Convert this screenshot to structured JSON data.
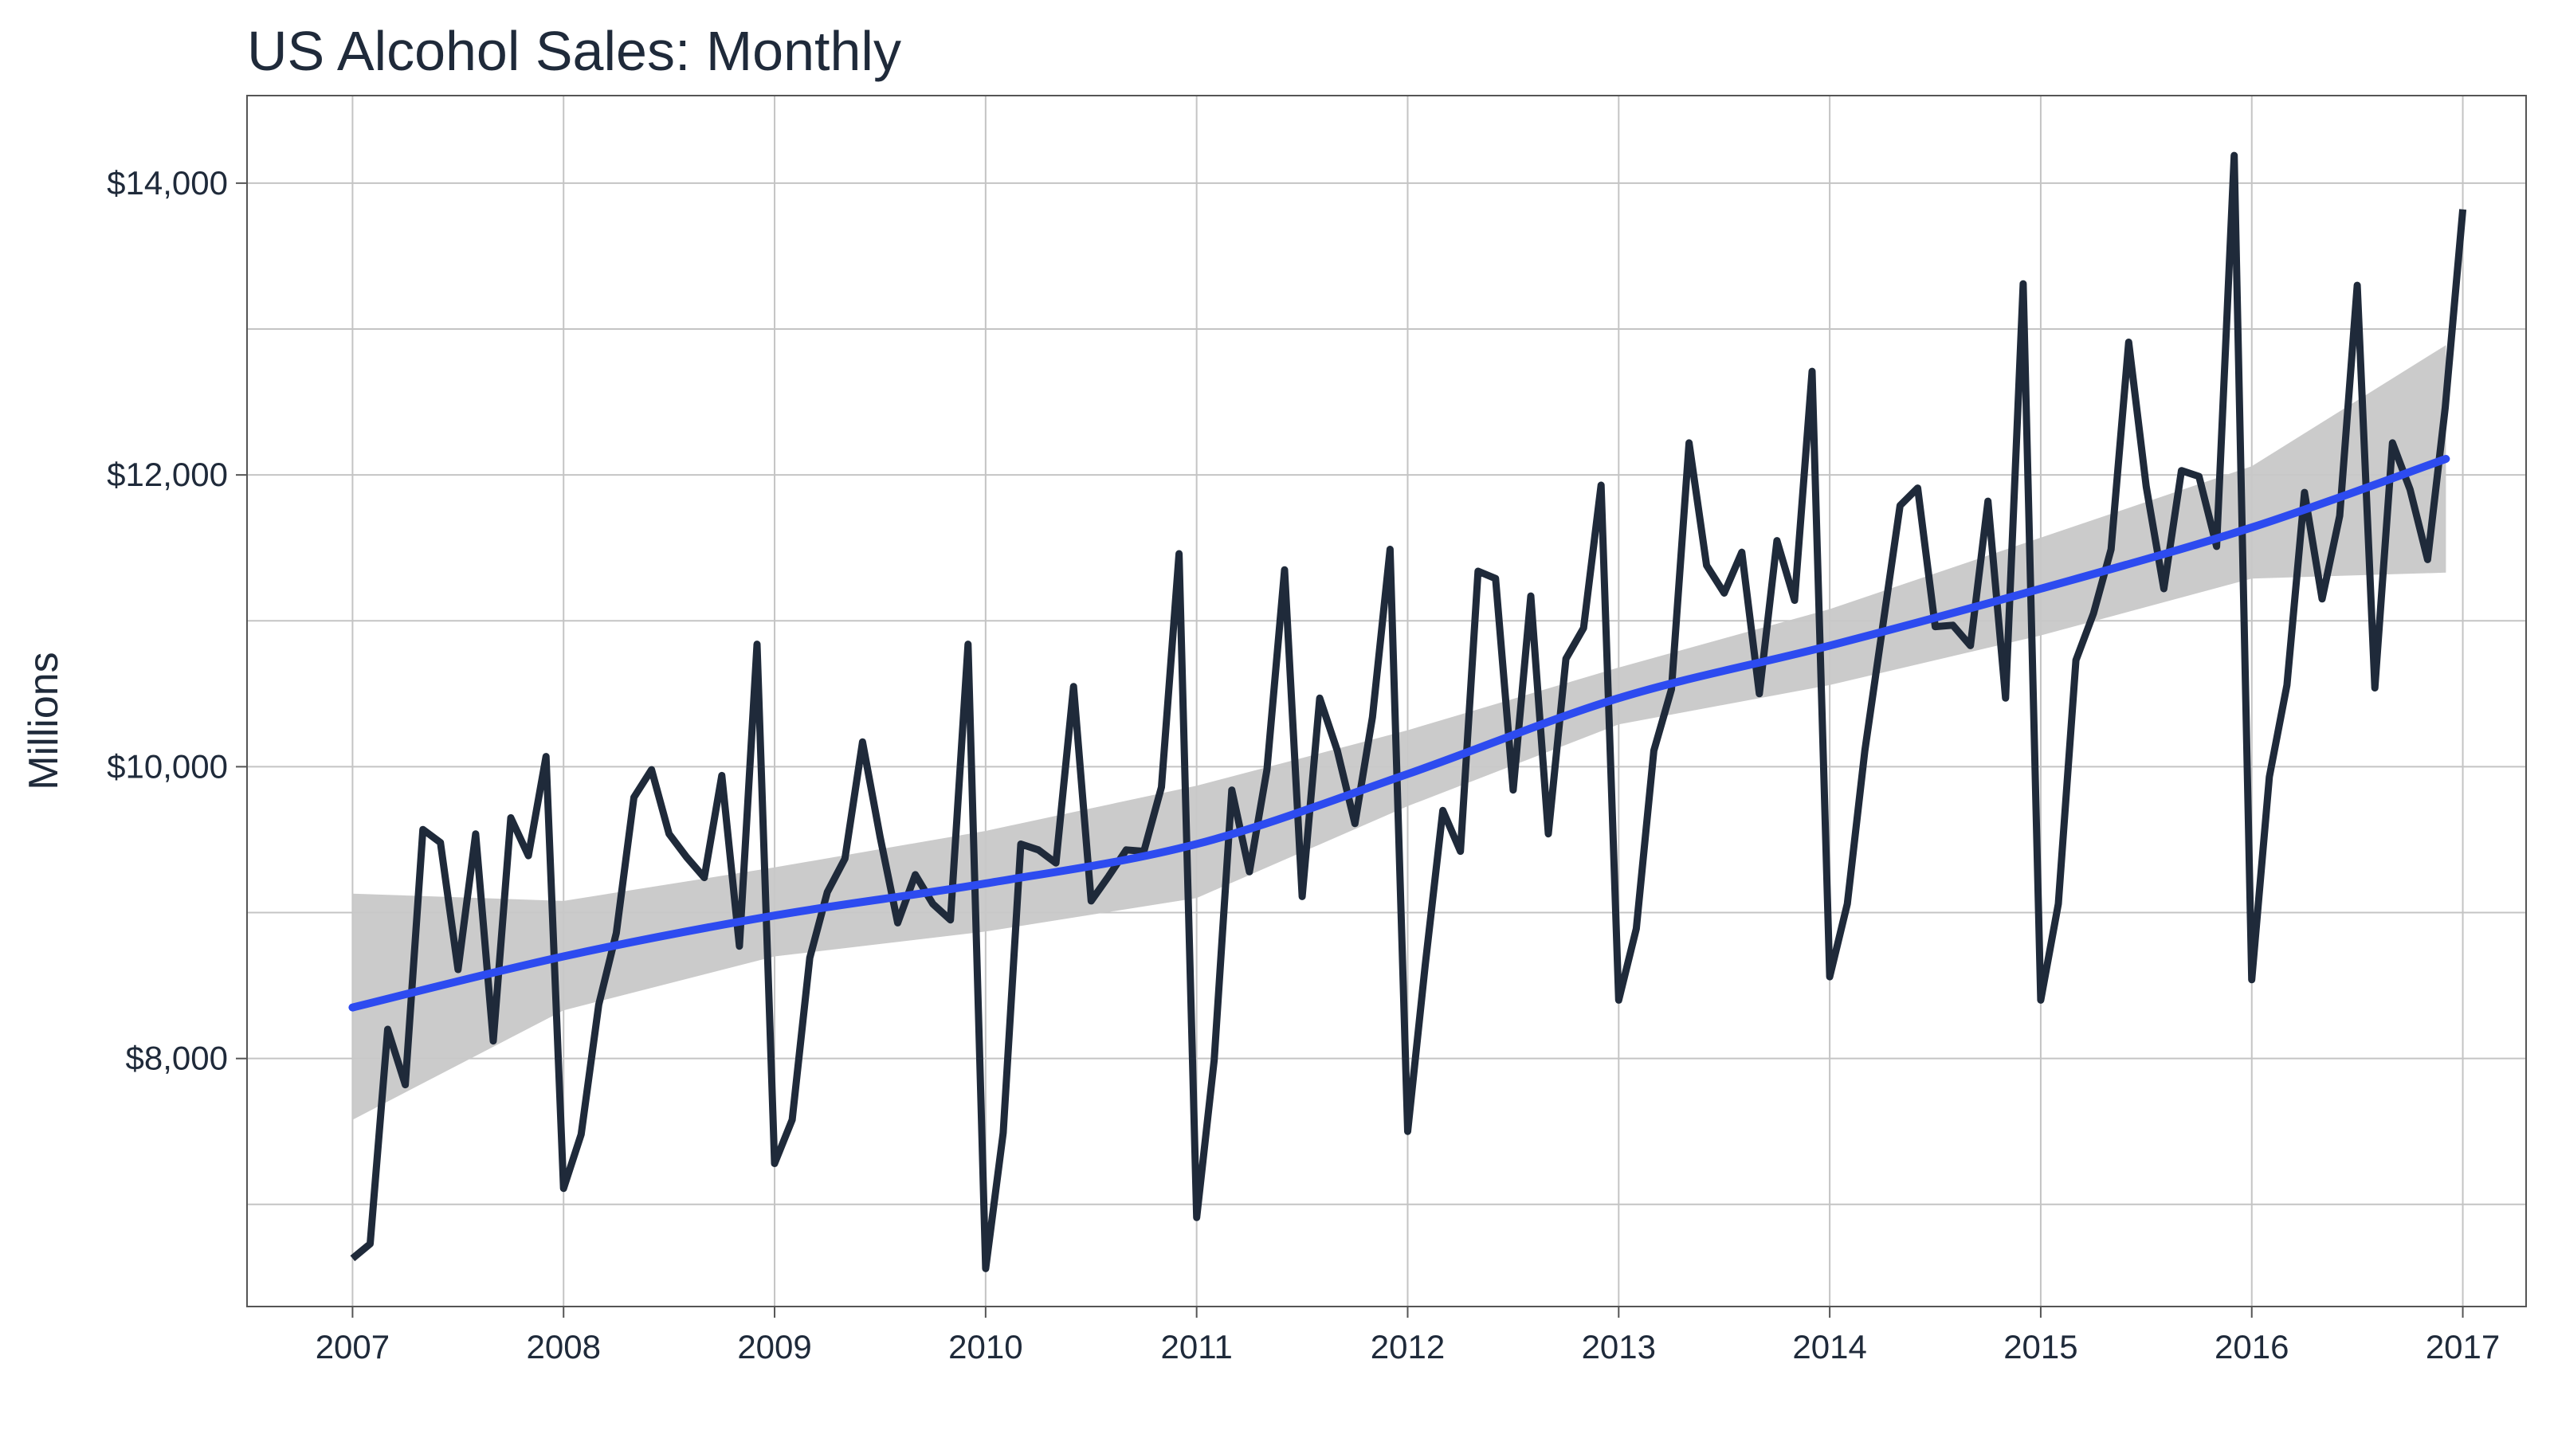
{
  "chart_data": {
    "type": "line",
    "title": "US Alcohol Sales: Monthly",
    "xlabel": "",
    "ylabel": "Millions",
    "x_ticks": [
      "2007",
      "2008",
      "2009",
      "2010",
      "2011",
      "2012",
      "2013",
      "2014",
      "2015",
      "2016",
      "2017"
    ],
    "y_ticks": [
      {
        "value": 8000,
        "label": "$8,000"
      },
      {
        "value": 10000,
        "label": "$10,000"
      },
      {
        "value": 12000,
        "label": "$12,000"
      },
      {
        "value": 14000,
        "label": "$14,000"
      }
    ],
    "xlim": [
      2006.5,
      2017.3
    ],
    "ylim": [
      6300,
      14600
    ],
    "grid": true,
    "start_year": 2007,
    "series": [
      {
        "values": [
          6630,
          6730,
          8200,
          7820,
          9570,
          9480,
          8610,
          9540,
          8120,
          9650,
          9390,
          10070,
          7110,
          7480,
          8370,
          8860,
          9790,
          9980,
          9540,
          9380,
          9240,
          9940,
          8770,
          10840,
          7280,
          7580,
          8690,
          9140,
          9370,
          10170,
          9520,
          8930,
          9260,
          9060,
          8950,
          10840,
          6560,
          7490,
          9470,
          9430,
          9340,
          10550,
          9080,
          9250,
          9430,
          9420,
          9860,
          11460,
          6910,
          7990,
          9840,
          9280,
          9980,
          11350,
          9110,
          10470,
          10110,
          9610,
          10340,
          11490,
          7500,
          8640,
          9700,
          9420,
          11340,
          11290,
          9840,
          11170,
          9540,
          10740,
          10950,
          11930,
          8400,
          8890,
          10110,
          10530,
          12220,
          11380,
          11190,
          11470,
          10500,
          11550,
          11140,
          12710,
          8560,
          9060,
          10110,
          10950,
          11790,
          11910,
          10960,
          10970,
          10830,
          11820,
          10470,
          13310,
          8400,
          9060,
          10730,
          11050,
          11490,
          12910,
          11920,
          11220,
          12030,
          11990,
          11510,
          14190,
          8540,
          9930,
          10560,
          11880,
          11150,
          11720,
          13300,
          10540,
          12220,
          11900,
          11420,
          12460,
          13820
        ]
      }
    ],
    "trend": {
      "x": [
        2007,
        2008,
        2009,
        2010,
        2011,
        2012,
        2013,
        2014,
        2015,
        2016,
        2016.92
      ],
      "y": [
        8350,
        8700,
        8980,
        9200,
        9470,
        9950,
        10470,
        10830,
        11220,
        11640,
        12110
      ],
      "ci_low": [
        7580,
        8330,
        8700,
        8870,
        9100,
        9730,
        10290,
        10560,
        10900,
        11290,
        11330
      ],
      "ci_high": [
        9130,
        9080,
        9310,
        9560,
        9870,
        10250,
        10680,
        11080,
        11570,
        12060,
        12890
      ]
    },
    "colors": {
      "line": "#1f2a3a",
      "trend": "#2d4bf0",
      "band": "#c8c8c8",
      "grid": "#c4c4c4",
      "panel_border": "#555555"
    }
  }
}
